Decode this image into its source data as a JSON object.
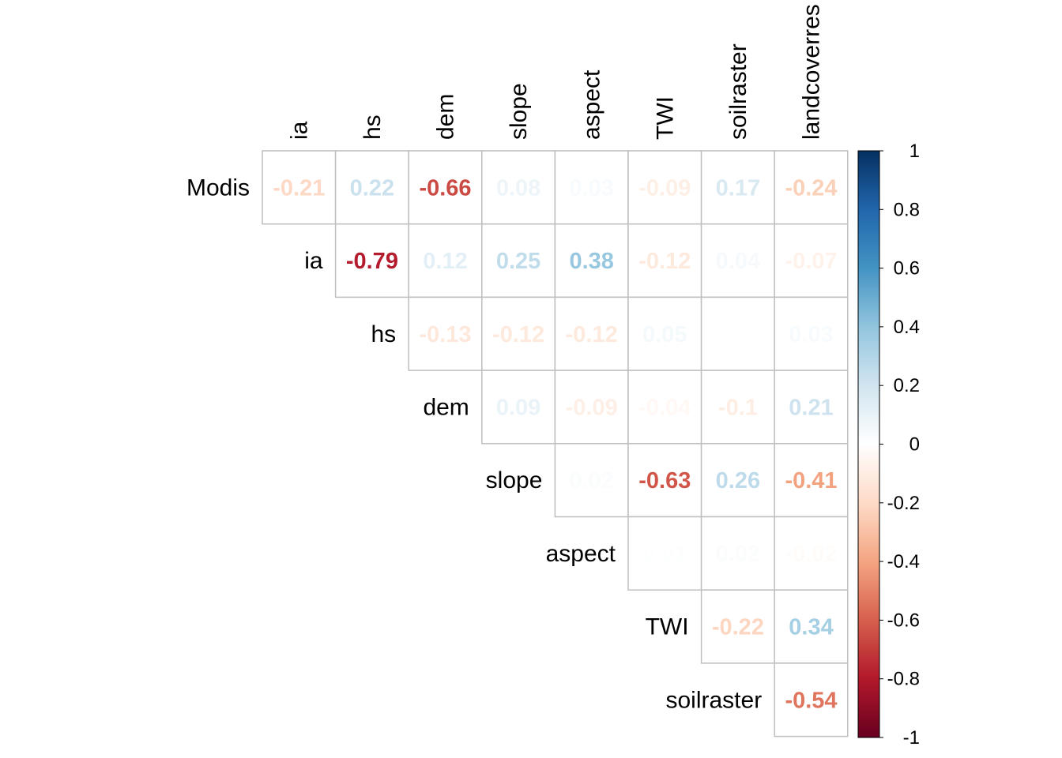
{
  "chart_data": {
    "type": "heatmap",
    "subtype": "correlation-upper-triangle",
    "row_labels": [
      "Modis",
      "ia",
      "hs",
      "dem",
      "slope",
      "aspect",
      "TWI",
      "soilraster"
    ],
    "col_labels": [
      "ia",
      "hs",
      "dem",
      "slope",
      "aspect",
      "TWI",
      "soilraster",
      "landcoverres"
    ],
    "cells": [
      {
        "row": 0,
        "col": 0,
        "label": "-0.21",
        "value": -0.21
      },
      {
        "row": 0,
        "col": 1,
        "label": "0.22",
        "value": 0.22
      },
      {
        "row": 0,
        "col": 2,
        "label": "-0.66",
        "value": -0.66
      },
      {
        "row": 0,
        "col": 3,
        "label": "0.08",
        "value": 0.08
      },
      {
        "row": 0,
        "col": 4,
        "label": "0.03",
        "value": 0.03
      },
      {
        "row": 0,
        "col": 5,
        "label": "-0.09",
        "value": -0.09
      },
      {
        "row": 0,
        "col": 6,
        "label": "0.17",
        "value": 0.17
      },
      {
        "row": 0,
        "col": 7,
        "label": "-0.24",
        "value": -0.24
      },
      {
        "row": 1,
        "col": 1,
        "label": "-0.79",
        "value": -0.79
      },
      {
        "row": 1,
        "col": 2,
        "label": "0.12",
        "value": 0.12
      },
      {
        "row": 1,
        "col": 3,
        "label": "0.25",
        "value": 0.25
      },
      {
        "row": 1,
        "col": 4,
        "label": "0.38",
        "value": 0.38
      },
      {
        "row": 1,
        "col": 5,
        "label": "-0.12",
        "value": -0.12
      },
      {
        "row": 1,
        "col": 6,
        "label": "0.04",
        "value": 0.04
      },
      {
        "row": 1,
        "col": 7,
        "label": "-0.07",
        "value": -0.07
      },
      {
        "row": 2,
        "col": 2,
        "label": "-0.13",
        "value": -0.13
      },
      {
        "row": 2,
        "col": 3,
        "label": "-0.12",
        "value": -0.12
      },
      {
        "row": 2,
        "col": 4,
        "label": "-0.12",
        "value": -0.12
      },
      {
        "row": 2,
        "col": 5,
        "label": "0.05",
        "value": 0.05
      },
      {
        "row": 2,
        "col": 6,
        "label": "0",
        "value": 0.0
      },
      {
        "row": 2,
        "col": 7,
        "label": "0.03",
        "value": 0.03
      },
      {
        "row": 3,
        "col": 3,
        "label": "0.09",
        "value": 0.09
      },
      {
        "row": 3,
        "col": 4,
        "label": "-0.09",
        "value": -0.09
      },
      {
        "row": 3,
        "col": 5,
        "label": "-0.04",
        "value": -0.04
      },
      {
        "row": 3,
        "col": 6,
        "label": "-0.1",
        "value": -0.1
      },
      {
        "row": 3,
        "col": 7,
        "label": "0.21",
        "value": 0.21
      },
      {
        "row": 4,
        "col": 4,
        "label": "0.02",
        "value": 0.02
      },
      {
        "row": 4,
        "col": 5,
        "label": "-0.63",
        "value": -0.63
      },
      {
        "row": 4,
        "col": 6,
        "label": "0.26",
        "value": 0.26
      },
      {
        "row": 4,
        "col": 7,
        "label": "-0.41",
        "value": -0.41
      },
      {
        "row": 5,
        "col": 5,
        "label": "0.01",
        "value": 0.01
      },
      {
        "row": 5,
        "col": 6,
        "label": "0.02",
        "value": 0.02
      },
      {
        "row": 5,
        "col": 7,
        "label": "-0.02",
        "value": -0.02
      },
      {
        "row": 6,
        "col": 6,
        "label": "-0.22",
        "value": -0.22
      },
      {
        "row": 6,
        "col": 7,
        "label": "0.34",
        "value": 0.34
      },
      {
        "row": 7,
        "col": 7,
        "label": "-0.54",
        "value": -0.54
      }
    ],
    "colorbar": {
      "range": [
        -1,
        1
      ],
      "ticks": [
        "1",
        "0.8",
        "0.6",
        "0.4",
        "0.2",
        "0",
        "-0.2",
        "-0.4",
        "-0.6",
        "-0.8",
        "-1"
      ],
      "tick_values": [
        1,
        0.8,
        0.6,
        0.4,
        0.2,
        0,
        -0.2,
        -0.4,
        -0.6,
        -0.8,
        -1
      ],
      "placement": "right"
    },
    "palette": [
      "#67001F",
      "#B2182B",
      "#D6604D",
      "#F4A582",
      "#FDDBC7",
      "#FFFFFF",
      "#D1E5F0",
      "#92C5DE",
      "#4393C3",
      "#2166AC",
      "#053061"
    ],
    "grid": true,
    "cell_border_color": "#BEBEBE"
  }
}
